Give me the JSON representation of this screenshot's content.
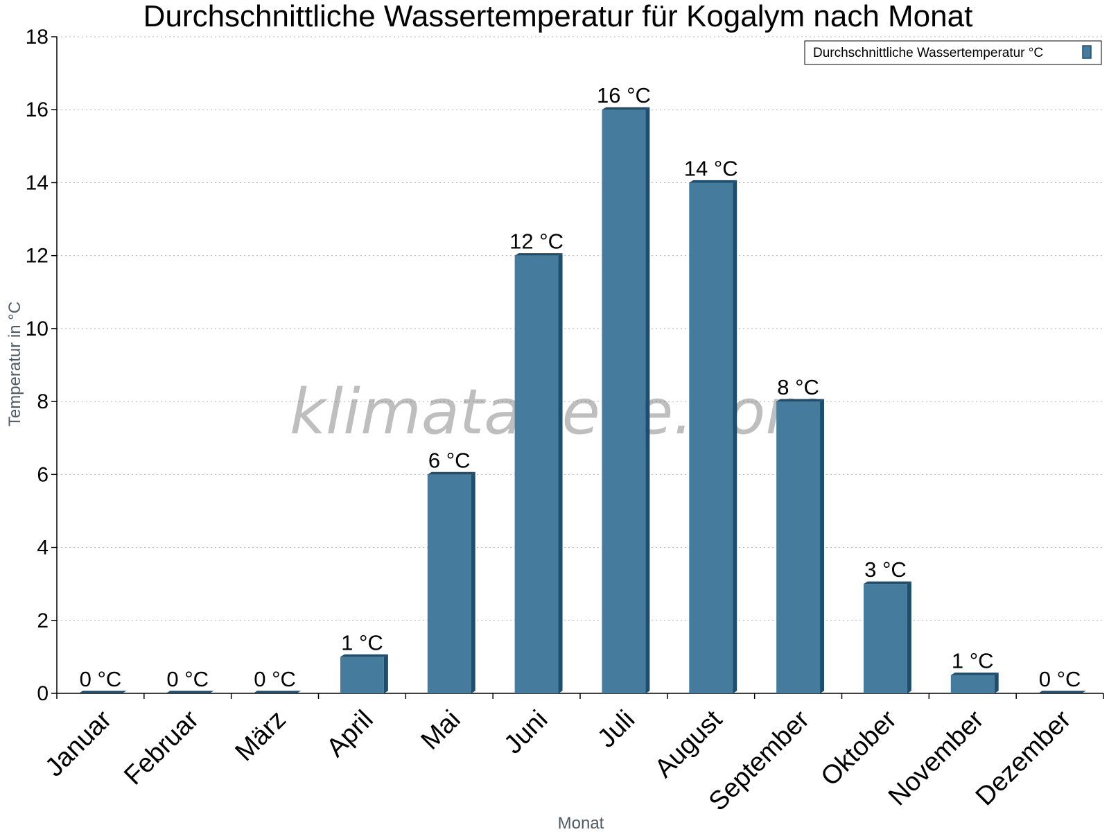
{
  "watermark": "klimatabelle.com",
  "chart_data": {
    "type": "bar",
    "title": "Durchschnittliche Wassertemperatur für Kogalym nach Monat",
    "xlabel": "Monat",
    "ylabel": "Temperatur in °C",
    "categories": [
      "Januar",
      "Februar",
      "März",
      "April",
      "Mai",
      "Juni",
      "Juli",
      "August",
      "September",
      "Oktober",
      "November",
      "Dezember"
    ],
    "series": [
      {
        "name": "Durchschnittliche Wassertemperatur °C",
        "values": [
          0,
          0,
          0,
          1,
          6,
          12,
          16,
          14,
          8,
          3,
          0.5,
          0
        ],
        "labels": [
          "0 °C",
          "0 °C",
          "0 °C",
          "1 °C",
          "6 °C",
          "12 °C",
          "16 °C",
          "14 °C",
          "8 °C",
          "3 °C",
          "1 °C",
          "0 °C"
        ]
      }
    ],
    "yticks": [
      "0",
      "2",
      "4",
      "6",
      "8",
      "10",
      "12",
      "14",
      "16",
      "18"
    ],
    "ylim": [
      0,
      18
    ],
    "grid": true,
    "legend_position": "top-right",
    "colors": {
      "bar": "#457b9d",
      "bar_edge": "#1d4e6e"
    }
  }
}
